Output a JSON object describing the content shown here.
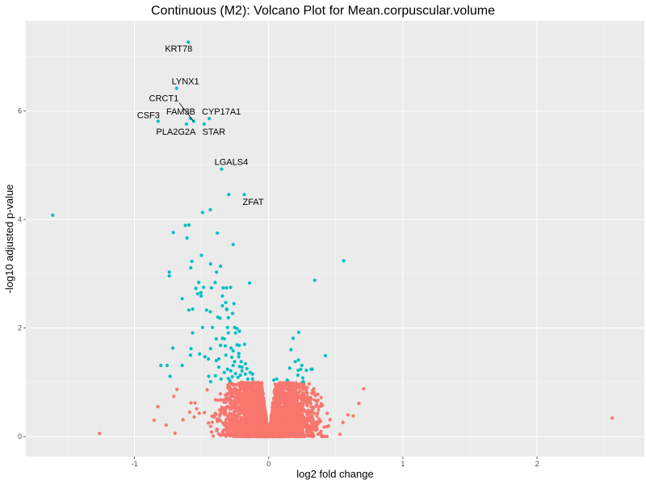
{
  "chart_data": {
    "type": "scatter",
    "title": "Continuous (M2): Volcano Plot for Mean.corpuscular.volume",
    "xlabel": "log2 fold change",
    "ylabel": "-log10 adjusted p-value",
    "xlim": [
      -1.81,
      2.8
    ],
    "ylim": [
      -0.37,
      7.66
    ],
    "x_ticks": [
      -1,
      0,
      1,
      2
    ],
    "x_tick_labels": [
      "-1",
      "0",
      "1",
      "2"
    ],
    "y_ticks": [
      0,
      2,
      4,
      6
    ],
    "y_tick_labels": [
      "0",
      "2",
      "4",
      "6"
    ],
    "grid": true,
    "legend": "none",
    "colors": {
      "significant": "#00BFC4",
      "not_significant": "#F8766D",
      "panel": "#EBEBEB",
      "grid": "#FFFFFF"
    },
    "labeled_points": [
      {
        "label": "KRT78",
        "x": -0.599,
        "y": 7.27
      },
      {
        "label": "LYNX1",
        "x": -0.687,
        "y": 6.42
      },
      {
        "label": "CRCT1",
        "x": -0.559,
        "y": 5.81
      },
      {
        "label": "FAM3B",
        "x": -0.583,
        "y": 5.86
      },
      {
        "label": "CYP17A1",
        "x": -0.443,
        "y": 5.86
      },
      {
        "label": "CSF3",
        "x": -0.824,
        "y": 5.81
      },
      {
        "label": "PLA2G2A",
        "x": -0.613,
        "y": 5.76
      },
      {
        "label": "STAR",
        "x": -0.481,
        "y": 5.76
      },
      {
        "label": "LGALS4",
        "x": -0.351,
        "y": 4.93
      },
      {
        "label": "ZFAT",
        "x": -0.182,
        "y": 4.46
      }
    ],
    "significant_points": [
      [
        -0.297,
        4.46
      ],
      [
        -0.435,
        4.18
      ],
      [
        -0.493,
        4.13
      ],
      [
        -1.61,
        4.08
      ],
      [
        -0.621,
        3.89
      ],
      [
        -0.594,
        3.9
      ],
      [
        -0.711,
        3.76
      ],
      [
        -0.609,
        3.66
      ],
      [
        -0.383,
        3.75
      ],
      [
        -0.265,
        3.54
      ],
      [
        -0.501,
        3.34
      ],
      [
        -0.573,
        3.23
      ],
      [
        -0.581,
        3.11
      ],
      [
        -0.433,
        3.18
      ],
      [
        -0.359,
        3.14
      ],
      [
        -0.389,
        3.03
      ],
      [
        -0.741,
        3.03
      ],
      [
        -0.741,
        2.96
      ],
      [
        -0.142,
        2.83
      ],
      [
        0.559,
        3.24
      ],
      [
        0.343,
        2.88
      ],
      [
        -0.521,
        2.84
      ],
      [
        -0.399,
        2.84
      ],
      [
        -0.485,
        2.75
      ],
      [
        -0.543,
        2.73
      ],
      [
        -0.505,
        2.65
      ],
      [
        -0.427,
        2.74
      ],
      [
        -0.339,
        2.74
      ],
      [
        -0.284,
        2.75
      ],
      [
        -0.314,
        2.74
      ],
      [
        -0.529,
        2.63
      ],
      [
        -0.503,
        2.59
      ],
      [
        -0.345,
        2.59
      ],
      [
        -0.32,
        2.47
      ],
      [
        -0.259,
        2.45
      ],
      [
        -0.645,
        2.54
      ],
      [
        -0.567,
        2.35
      ],
      [
        -0.595,
        2.33
      ],
      [
        -0.463,
        2.33
      ],
      [
        -0.435,
        2.3
      ],
      [
        -0.313,
        2.35
      ],
      [
        -0.345,
        2.41
      ],
      [
        -0.312,
        2.34
      ],
      [
        -0.269,
        2.27
      ],
      [
        -0.301,
        2.19
      ],
      [
        -0.379,
        2.2
      ],
      [
        -0.363,
        2.18
      ],
      [
        -0.493,
        2.01
      ],
      [
        -0.419,
        2.01
      ],
      [
        -0.307,
        2.01
      ],
      [
        -0.254,
        2.01
      ],
      [
        -0.236,
        1.99
      ],
      [
        -0.218,
        1.94
      ],
      [
        -0.247,
        1.91
      ],
      [
        -0.301,
        1.91
      ],
      [
        -0.567,
        1.91
      ],
      [
        -0.345,
        1.81
      ],
      [
        -0.331,
        1.8
      ],
      [
        -0.391,
        1.8
      ],
      [
        -0.359,
        1.68
      ],
      [
        -0.281,
        1.63
      ],
      [
        -0.323,
        1.67
      ],
      [
        -0.22,
        1.68
      ],
      [
        -0.236,
        1.69
      ],
      [
        -0.18,
        1.7
      ],
      [
        -0.223,
        1.53
      ],
      [
        -0.265,
        1.58
      ],
      [
        -0.579,
        1.62
      ],
      [
        -0.433,
        1.62
      ],
      [
        -0.714,
        1.63
      ],
      [
        -0.757,
        1.31
      ],
      [
        -0.645,
        1.31
      ],
      [
        -0.804,
        1.31
      ],
      [
        -0.735,
        1.11
      ],
      [
        -0.447,
        1.11
      ],
      [
        -0.583,
        1.5
      ],
      [
        -0.515,
        1.52
      ],
      [
        -0.475,
        1.47
      ],
      [
        -0.449,
        1.43
      ],
      [
        -0.391,
        1.4
      ],
      [
        -0.372,
        1.43
      ],
      [
        -0.319,
        1.5
      ],
      [
        -0.275,
        1.46
      ],
      [
        -0.254,
        1.38
      ],
      [
        -0.223,
        1.47
      ],
      [
        -0.205,
        1.38
      ],
      [
        -0.265,
        1.31
      ],
      [
        -0.217,
        1.29
      ],
      [
        -0.174,
        1.34
      ],
      [
        -0.199,
        1.28
      ],
      [
        -0.162,
        1.25
      ],
      [
        -0.307,
        1.24
      ],
      [
        -0.372,
        1.28
      ],
      [
        -0.397,
        1.12
      ],
      [
        -0.331,
        1.18
      ],
      [
        -0.283,
        1.21
      ],
      [
        -0.247,
        1.16
      ],
      [
        -0.199,
        1.21
      ],
      [
        -0.211,
        1.13
      ],
      [
        -0.174,
        1.15
      ],
      [
        -0.138,
        1.18
      ],
      [
        -0.12,
        1.15
      ],
      [
        -0.229,
        1.09
      ],
      [
        -0.271,
        1.1
      ],
      [
        -0.301,
        1.07
      ],
      [
        -0.355,
        1.06
      ],
      [
        -0.433,
        1.01
      ],
      [
        -0.289,
        1.03
      ],
      [
        -0.12,
        1.06
      ],
      [
        -0.156,
        1.06
      ],
      [
        0.224,
        1.92
      ],
      [
        0.182,
        1.81
      ],
      [
        0.166,
        1.6
      ],
      [
        0.423,
        1.49
      ],
      [
        0.198,
        1.38
      ],
      [
        0.222,
        1.41
      ],
      [
        0.247,
        1.31
      ],
      [
        0.156,
        1.26
      ],
      [
        0.22,
        1.22
      ],
      [
        0.239,
        1.24
      ],
      [
        0.281,
        1.22
      ],
      [
        0.317,
        1.24
      ],
      [
        0.325,
        1.24
      ],
      [
        0.218,
        1.13
      ],
      [
        0.254,
        1.08
      ],
      [
        0.258,
        1.01
      ],
      [
        0.038,
        1.04
      ],
      [
        0.06,
        1.06
      ],
      [
        0.138,
        1.04
      ]
    ],
    "not_significant_points": [
      [
        -1.261,
        0.055
      ],
      [
        -0.684,
        0.87
      ],
      [
        -0.707,
        0.74
      ],
      [
        -0.826,
        0.55
      ],
      [
        -0.854,
        0.3
      ],
      [
        -0.764,
        0.21
      ],
      [
        -0.698,
        0.06
      ],
      [
        -0.639,
        0.31
      ],
      [
        -0.579,
        0.62
      ],
      [
        -0.549,
        0.62
      ],
      [
        -0.537,
        0.51
      ],
      [
        -0.589,
        0.45
      ],
      [
        -0.555,
        0.36
      ],
      [
        -0.517,
        0.43
      ],
      [
        -0.479,
        0.44
      ],
      [
        -0.459,
        0.86
      ],
      [
        0.708,
        0.88
      ],
      [
        0.672,
        0.61
      ],
      [
        0.591,
        0.4
      ],
      [
        0.63,
        0.38
      ],
      [
        0.553,
        0.26
      ],
      [
        0.531,
        0.04
      ],
      [
        0.367,
        0.67
      ],
      [
        0.365,
        0.43
      ],
      [
        0.457,
        0.31
      ],
      [
        0.387,
        0.28
      ],
      [
        0.192,
        0.87
      ],
      [
        0.254,
        0.9
      ],
      [
        0.15,
        1.0
      ],
      [
        0.319,
        0.07
      ],
      [
        2.56,
        0.34
      ]
    ],
    "not_significant_core": {
      "n": 3500,
      "x_range": [
        -0.45,
        0.45
      ],
      "y_max": 1.0
    }
  }
}
